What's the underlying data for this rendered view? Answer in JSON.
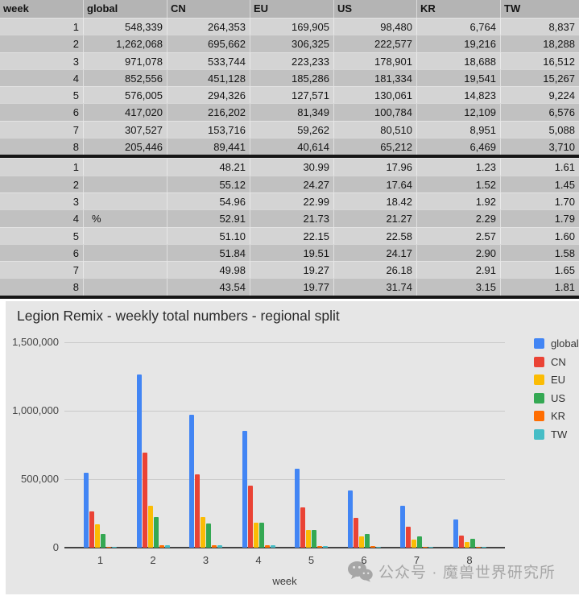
{
  "table": {
    "columns": [
      "week",
      "global",
      "CN",
      "EU",
      "US",
      "KR",
      "TW"
    ],
    "count_rows": [
      [
        "1",
        "548,339",
        "264,353",
        "169,905",
        "98,480",
        "6,764",
        "8,837"
      ],
      [
        "2",
        "1,262,068",
        "695,662",
        "306,325",
        "222,577",
        "19,216",
        "18,288"
      ],
      [
        "3",
        "971,078",
        "533,744",
        "223,233",
        "178,901",
        "18,688",
        "16,512"
      ],
      [
        "4",
        "852,556",
        "451,128",
        "185,286",
        "181,334",
        "19,541",
        "15,267"
      ],
      [
        "5",
        "576,005",
        "294,326",
        "127,571",
        "130,061",
        "14,823",
        "9,224"
      ],
      [
        "6",
        "417,020",
        "216,202",
        "81,349",
        "100,784",
        "12,109",
        "6,576"
      ],
      [
        "7",
        "307,527",
        "153,716",
        "59,262",
        "80,510",
        "8,951",
        "5,088"
      ],
      [
        "8",
        "205,446",
        "89,441",
        "40,614",
        "65,212",
        "6,469",
        "3,710"
      ]
    ],
    "percent_rows": [
      [
        "1",
        "",
        "48.21",
        "30.99",
        "17.96",
        "1.23",
        "1.61"
      ],
      [
        "2",
        "",
        "55.12",
        "24.27",
        "17.64",
        "1.52",
        "1.45"
      ],
      [
        "3",
        "",
        "54.96",
        "22.99",
        "18.42",
        "1.92",
        "1.70"
      ],
      [
        "4",
        "%",
        "52.91",
        "21.73",
        "21.27",
        "2.29",
        "1.79"
      ],
      [
        "5",
        "",
        "51.10",
        "22.15",
        "22.58",
        "2.57",
        "1.60"
      ],
      [
        "6",
        "",
        "51.84",
        "19.51",
        "24.17",
        "2.90",
        "1.58"
      ],
      [
        "7",
        "",
        "49.98",
        "19.27",
        "26.18",
        "2.91",
        "1.65"
      ],
      [
        "8",
        "",
        "43.54",
        "19.77",
        "31.74",
        "3.15",
        "1.81"
      ]
    ]
  },
  "chart_data": {
    "type": "bar",
    "title": "Legion Remix - weekly total numbers - regional split",
    "xlabel": "week",
    "ylabel": "",
    "categories": [
      "1",
      "2",
      "3",
      "4",
      "5",
      "6",
      "7",
      "8"
    ],
    "series": [
      {
        "name": "global",
        "color": "#4285F4",
        "values": [
          548339,
          1262068,
          971078,
          852556,
          576005,
          417020,
          307527,
          205446
        ]
      },
      {
        "name": "CN",
        "color": "#EA4335",
        "values": [
          264353,
          695662,
          533744,
          451128,
          294326,
          216202,
          153716,
          89441
        ]
      },
      {
        "name": "EU",
        "color": "#FBBC04",
        "values": [
          169905,
          306325,
          223233,
          185286,
          127571,
          81349,
          59262,
          40614
        ]
      },
      {
        "name": "US",
        "color": "#34A853",
        "values": [
          98480,
          222577,
          178901,
          181334,
          130061,
          100784,
          80510,
          65212
        ]
      },
      {
        "name": "KR",
        "color": "#FF6D01",
        "values": [
          6764,
          19216,
          18688,
          19541,
          14823,
          12109,
          8951,
          6469
        ]
      },
      {
        "name": "TW",
        "color": "#46BDC6",
        "values": [
          8837,
          18288,
          16512,
          15267,
          9224,
          6576,
          5088,
          3710
        ]
      }
    ],
    "ylim": [
      0,
      1500000
    ],
    "y_ticks": [
      {
        "label": "0",
        "value": 0
      },
      {
        "label": "500,000",
        "value": 500000
      },
      {
        "label": "1,000,000",
        "value": 1000000
      },
      {
        "label": "1,500,000",
        "value": 1500000
      }
    ],
    "grid": true,
    "legend_position": "right"
  },
  "watermark": {
    "text": "公众号 · 魔兽世界研究所"
  }
}
